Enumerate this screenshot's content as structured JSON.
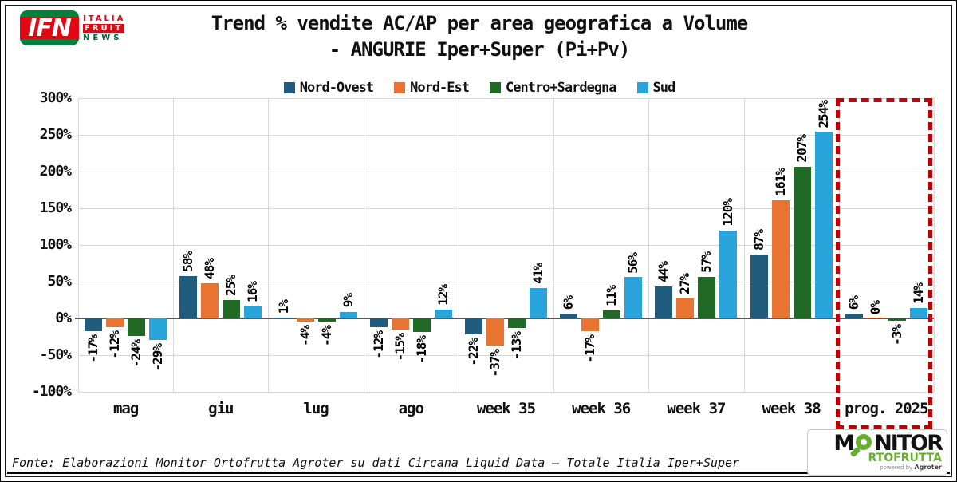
{
  "header": {
    "title_line1": "Trend % vendite AC/AP per area geografica a Volume",
    "title_line2": "- ANGURIE Iper+Super (Pi+Pv)"
  },
  "ifn_logo": {
    "acronym": "IFN",
    "word1": "ITALIA",
    "word2": "FRUIT",
    "word3": "NEWS"
  },
  "chart_data": {
    "type": "bar",
    "title": "Trend % vendite AC/AP per area geografica a Volume - ANGURIE Iper+Super (Pi+Pv)",
    "categories": [
      "mag",
      "giu",
      "lug",
      "ago",
      "week 35",
      "week 36",
      "week 37",
      "week 38",
      "prog. 2025"
    ],
    "series": [
      {
        "name": "Nord-Ovest",
        "color": "#1f5c7d",
        "values": [
          -17,
          58,
          1,
          -12,
          -22,
          6,
          44,
          87,
          6
        ],
        "labels": [
          "-17%",
          "58%",
          "1%",
          "-12%",
          "-22%",
          "6%",
          "44%",
          "87%",
          "6%"
        ]
      },
      {
        "name": "Nord-Est",
        "color": "#e97331",
        "values": [
          -12,
          48,
          -4,
          -15,
          -37,
          -17,
          27,
          161,
          0
        ],
        "labels": [
          "-12%",
          "48%",
          "-4%",
          "-15%",
          "-37%",
          "-17%",
          "27%",
          "161%",
          "0%"
        ]
      },
      {
        "name": "Centro+Sardegna",
        "color": "#206a26",
        "values": [
          -24,
          25,
          -4,
          -18,
          -13,
          11,
          57,
          207,
          -3
        ],
        "labels": [
          "-24%",
          "25%",
          "-4%",
          "-18%",
          "-13%",
          "11%",
          "57%",
          "207%",
          "-3%"
        ]
      },
      {
        "name": "Sud",
        "color": "#29a4db",
        "values": [
          -29,
          16,
          9,
          12,
          41,
          56,
          120,
          254,
          14
        ],
        "labels": [
          "-29%",
          "16%",
          "9%",
          "12%",
          "41%",
          "56%",
          "120%",
          "254%",
          "14%"
        ]
      }
    ],
    "y_ticks": [
      {
        "value": 300,
        "label": "300%"
      },
      {
        "value": 250,
        "label": "250%"
      },
      {
        "value": 200,
        "label": "200%"
      },
      {
        "value": 150,
        "label": "150%"
      },
      {
        "value": 100,
        "label": "100%"
      },
      {
        "value": 50,
        "label": "50%"
      },
      {
        "value": 0,
        "label": "0%"
      },
      {
        "value": -50,
        "label": "-50%"
      },
      {
        "value": -100,
        "label": "-100%"
      }
    ],
    "ylim": [
      -100,
      300
    ],
    "grid": true,
    "legend_position": "top",
    "highlight": {
      "category": "prog. 2025",
      "style": "red-dashed-box",
      "color": "#c00000"
    }
  },
  "colors": {
    "grid": "#d9d9d9",
    "zero_axis": "#595959",
    "highlight_red": "#c00000"
  },
  "footer": {
    "source": "Fonte: Elaborazioni Monitor Ortofrutta Agroter su dati Circana Liquid Data – Totale Italia Iper+Super"
  },
  "monitor_logo": {
    "part_m": "M",
    "part_nitor": "NITOR",
    "part_rtofrutta": "RTOFRUTTA",
    "powered_by": "powered by",
    "agroter": "Agroter"
  }
}
